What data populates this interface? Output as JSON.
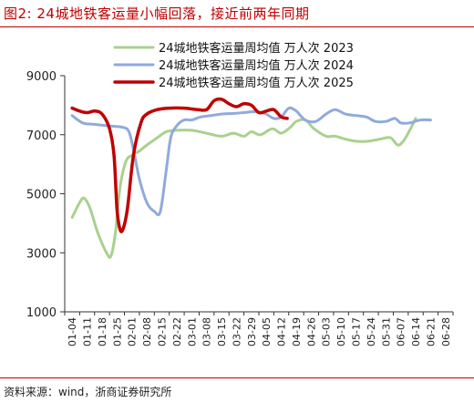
{
  "figure": {
    "title": "图2:   24城地铁客运量小幅回落，接近前两年同期",
    "source": "资料来源：wind，浙商证券研究所"
  },
  "chart_data": {
    "type": "line",
    "title": "",
    "xlabel": "",
    "ylabel": "",
    "ylim": [
      1000,
      9000
    ],
    "yticks": [
      1000,
      3000,
      5000,
      7000,
      9000
    ],
    "grid": false,
    "legend_position": "top-center",
    "x_categories": [
      "01-04",
      "01-11",
      "01-18",
      "01-25",
      "02-01",
      "02-08",
      "02-15",
      "02-22",
      "03-01",
      "03-08",
      "03-15",
      "03-22",
      "03-29",
      "04-05",
      "04-12",
      "04-19",
      "04-26",
      "05-03",
      "05-10",
      "05-17",
      "05-24",
      "05-31",
      "06-07",
      "06-14",
      "06-21",
      "06-28"
    ],
    "series": [
      {
        "name": "24城地铁客运量周均值  万人次  2023",
        "color": "#a9d18e",
        "line_width": 3,
        "points": [
          [
            0.0,
            4200
          ],
          [
            0.5,
            4700
          ],
          [
            0.8,
            4850
          ],
          [
            1.2,
            4500
          ],
          [
            1.7,
            3700
          ],
          [
            2.3,
            3000
          ],
          [
            2.6,
            2900
          ],
          [
            2.9,
            3700
          ],
          [
            3.2,
            5200
          ],
          [
            3.6,
            6100
          ],
          [
            4.0,
            6300
          ],
          [
            4.5,
            6450
          ],
          [
            5.0,
            6650
          ],
          [
            5.7,
            6900
          ],
          [
            6.3,
            7100
          ],
          [
            7.0,
            7150
          ],
          [
            8.0,
            7150
          ],
          [
            9.0,
            7050
          ],
          [
            10.0,
            6950
          ],
          [
            10.8,
            7050
          ],
          [
            11.5,
            6950
          ],
          [
            12.0,
            7100
          ],
          [
            12.6,
            7000
          ],
          [
            13.4,
            7200
          ],
          [
            14.0,
            7050
          ],
          [
            14.6,
            7250
          ],
          [
            15.0,
            7450
          ],
          [
            15.6,
            7500
          ],
          [
            16.2,
            7200
          ],
          [
            17.0,
            6950
          ],
          [
            17.6,
            6950
          ],
          [
            18.3,
            6850
          ],
          [
            19.0,
            6780
          ],
          [
            19.8,
            6780
          ],
          [
            20.6,
            6850
          ],
          [
            21.3,
            6900
          ],
          [
            21.8,
            6650
          ],
          [
            22.2,
            6800
          ],
          [
            22.6,
            7150
          ],
          [
            23.0,
            7550
          ]
        ]
      },
      {
        "name": "24城地铁客运量周均值  万人次  2024",
        "color": "#8faadc",
        "line_width": 3,
        "points": [
          [
            0.0,
            7650
          ],
          [
            0.7,
            7400
          ],
          [
            1.5,
            7350
          ],
          [
            2.4,
            7300
          ],
          [
            3.4,
            7250
          ],
          [
            3.8,
            7100
          ],
          [
            4.1,
            6500
          ],
          [
            4.5,
            5500
          ],
          [
            5.0,
            4700
          ],
          [
            5.5,
            4400
          ],
          [
            5.9,
            4400
          ],
          [
            6.3,
            5800
          ],
          [
            6.6,
            6900
          ],
          [
            7.0,
            7300
          ],
          [
            7.5,
            7500
          ],
          [
            8.0,
            7500
          ],
          [
            8.6,
            7600
          ],
          [
            9.3,
            7650
          ],
          [
            10.0,
            7700
          ],
          [
            10.8,
            7720
          ],
          [
            11.5,
            7750
          ],
          [
            12.2,
            7780
          ],
          [
            12.9,
            7720
          ],
          [
            13.5,
            7550
          ],
          [
            14.0,
            7600
          ],
          [
            14.5,
            7900
          ],
          [
            15.0,
            7800
          ],
          [
            15.6,
            7500
          ],
          [
            16.3,
            7450
          ],
          [
            17.0,
            7700
          ],
          [
            17.6,
            7850
          ],
          [
            18.3,
            7700
          ],
          [
            19.0,
            7650
          ],
          [
            19.7,
            7600
          ],
          [
            20.3,
            7450
          ],
          [
            21.0,
            7450
          ],
          [
            21.6,
            7550
          ],
          [
            22.0,
            7400
          ],
          [
            22.6,
            7400
          ],
          [
            23.3,
            7500
          ],
          [
            24.0,
            7500
          ]
        ]
      },
      {
        "name": "24城地铁客运量周均值  万人次  2025",
        "color": "#c00000",
        "line_width": 3.5,
        "points": [
          [
            0.0,
            7900
          ],
          [
            0.5,
            7800
          ],
          [
            1.0,
            7750
          ],
          [
            1.5,
            7800
          ],
          [
            2.0,
            7700
          ],
          [
            2.5,
            7200
          ],
          [
            2.8,
            6300
          ],
          [
            3.0,
            4500
          ],
          [
            3.2,
            3800
          ],
          [
            3.4,
            3800
          ],
          [
            3.7,
            4500
          ],
          [
            4.1,
            6300
          ],
          [
            4.6,
            7400
          ],
          [
            5.0,
            7700
          ],
          [
            5.7,
            7850
          ],
          [
            6.5,
            7900
          ],
          [
            7.5,
            7900
          ],
          [
            8.4,
            7850
          ],
          [
            9.0,
            7850
          ],
          [
            9.5,
            8150
          ],
          [
            10.0,
            8200
          ],
          [
            10.5,
            8050
          ],
          [
            11.0,
            7950
          ],
          [
            11.5,
            8050
          ],
          [
            12.0,
            8000
          ],
          [
            12.5,
            7750
          ],
          [
            13.0,
            7800
          ],
          [
            13.5,
            7850
          ],
          [
            14.0,
            7600
          ],
          [
            14.4,
            7550
          ]
        ]
      }
    ]
  }
}
